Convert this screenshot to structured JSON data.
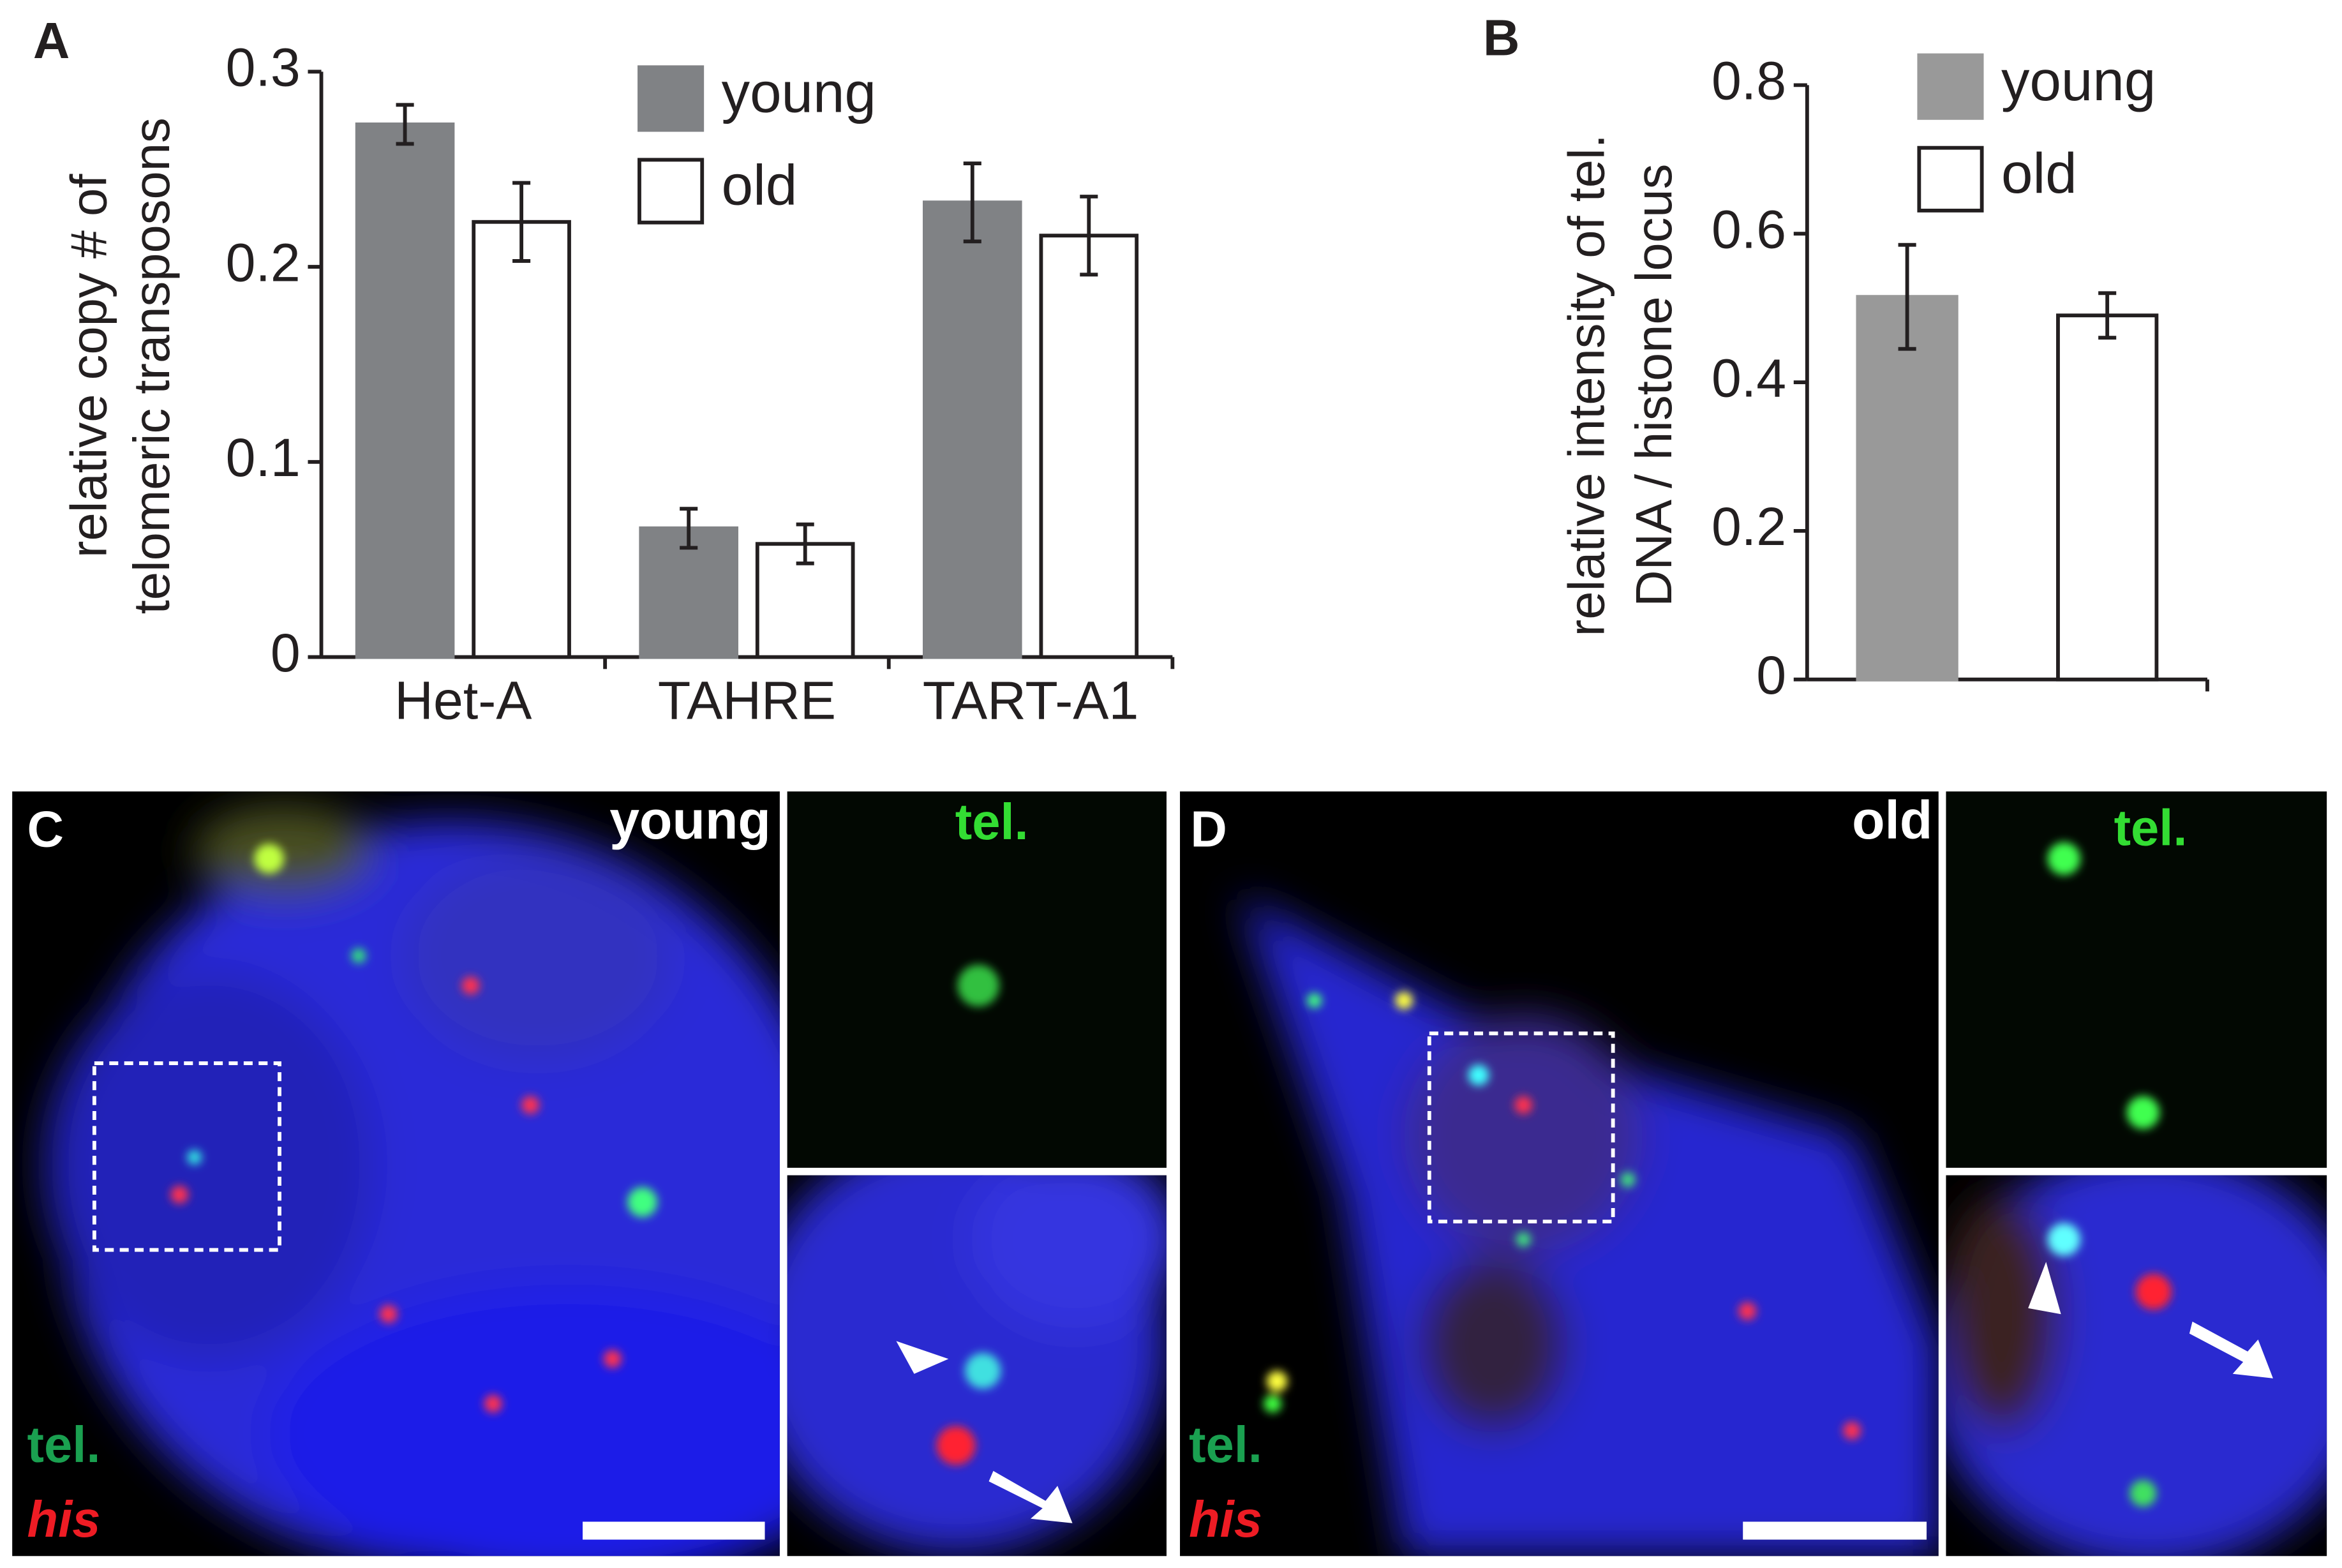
{
  "chart_data": [
    {
      "type": "bar",
      "panel": "A",
      "ylabel": [
        "relative copy # of",
        "telomeric transposons"
      ],
      "categories": [
        "Het-A",
        "TAHRE",
        "TART-A1"
      ],
      "series": [
        {
          "name": "young",
          "color": "#808285",
          "values": [
            0.273,
            0.066,
            0.233
          ],
          "errors": [
            0.01,
            0.01,
            0.02
          ]
        },
        {
          "name": "old",
          "color": "#ffffff",
          "values": [
            0.223,
            0.058,
            0.216
          ],
          "errors": [
            0.02,
            0.01,
            0.02
          ]
        }
      ],
      "ylim": [
        0,
        0.3
      ],
      "yticks": [
        0,
        0.1,
        0.2,
        0.3
      ]
    },
    {
      "type": "bar",
      "panel": "B",
      "ylabel": [
        "relative intensity of tel.",
        "DNA / histone locus"
      ],
      "categories": [
        null
      ],
      "series": [
        {
          "name": "young",
          "color": "#999999",
          "values": [
            0.515
          ],
          "errors": [
            0.07
          ]
        },
        {
          "name": "old",
          "color": "#ffffff",
          "values": [
            0.49
          ],
          "errors": [
            0.03
          ]
        }
      ],
      "ylim": [
        0,
        0.8
      ],
      "yticks": [
        0,
        0.2,
        0.4,
        0.6,
        0.8
      ]
    }
  ],
  "panels": [
    {
      "label": "C",
      "condition": "young",
      "inset_label": "tel.",
      "legend": [
        "tel.",
        "his"
      ]
    },
    {
      "label": "D",
      "condition": "old",
      "inset_label": "tel.",
      "legend": [
        "tel.",
        "his"
      ]
    }
  ]
}
